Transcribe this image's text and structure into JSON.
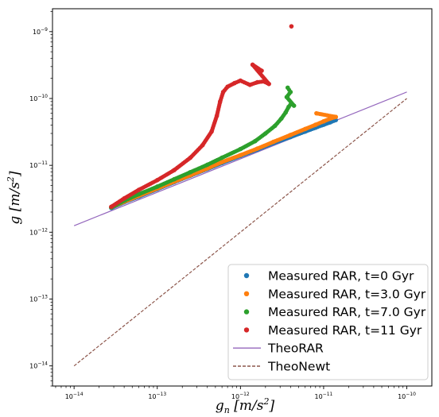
{
  "chart_data": {
    "type": "scatter",
    "xscale": "log",
    "yscale": "log",
    "xlim": [
      5.5e-15,
      2e-10
    ],
    "ylim": [
      5e-15,
      2.2e-09
    ],
    "xlabel": "g_n [m/s^2]",
    "ylabel": "g [m/s^2]",
    "xlabel_parts": {
      "main": "g",
      "sub": "n",
      "unit_open": " [m/s",
      "unit_sup": "2",
      "unit_close": "]"
    },
    "ylabel_parts": {
      "main": "g",
      "unit_open": " [m/s",
      "unit_sup": "2",
      "unit_close": "]"
    },
    "x_ticks": [
      {
        "value": 1e-14,
        "base": "10",
        "exp": "−14"
      },
      {
        "value": 1e-13,
        "base": "10",
        "exp": "−13"
      },
      {
        "value": 1e-12,
        "base": "10",
        "exp": "−12"
      },
      {
        "value": 1e-11,
        "base": "10",
        "exp": "−11"
      },
      {
        "value": 1e-10,
        "base": "10",
        "exp": "−10"
      }
    ],
    "y_ticks": [
      {
        "value": 1e-14,
        "base": "10",
        "exp": "−14"
      },
      {
        "value": 1e-13,
        "base": "10",
        "exp": "−13"
      },
      {
        "value": 1e-12,
        "base": "10",
        "exp": "−12"
      },
      {
        "value": 1e-11,
        "base": "10",
        "exp": "−11"
      },
      {
        "value": 1e-10,
        "base": "10",
        "exp": "−10"
      },
      {
        "value": 1e-09,
        "base": "10",
        "exp": "−9"
      }
    ],
    "legend_position": "lower right",
    "grid": false,
    "series": [
      {
        "name": "Measured RAR, t=0 Gyr",
        "kind": "scatter",
        "color": "#1f77b4",
        "x": [
          2.8e-14,
          4e-14,
          6e-14,
          1e-13,
          1.6e-13,
          2.5e-13,
          4e-13,
          6e-13,
          1e-12,
          1.6e-12,
          2.5e-12,
          4e-12,
          6e-12,
          8e-12,
          1e-11,
          1.2e-11,
          1.4e-11
        ],
        "y": [
          2.3e-12,
          2.8e-12,
          3.4e-12,
          4.4e-12,
          5.6e-12,
          7e-12,
          8.8e-12,
          1.08e-11,
          1.38e-11,
          1.72e-11,
          2.15e-11,
          2.65e-11,
          3.2e-11,
          3.65e-11,
          4.05e-11,
          4.4e-11,
          4.75e-11
        ]
      },
      {
        "name": "Measured RAR, t=3.0 Gyr",
        "kind": "scatter",
        "color": "#ff7f0e",
        "x": [
          2.8e-14,
          4e-14,
          6e-14,
          1e-13,
          1.6e-13,
          2.5e-13,
          4e-13,
          6e-13,
          1e-12,
          1.6e-12,
          2.5e-12,
          4e-12,
          6e-12,
          8e-12,
          1e-11,
          1.2e-11,
          1.4e-11,
          8.2e-12
        ],
        "y": [
          2.35e-12,
          2.85e-12,
          3.5e-12,
          4.5e-12,
          5.7e-12,
          7.1e-12,
          9e-12,
          1.12e-11,
          1.42e-11,
          1.78e-11,
          2.25e-11,
          2.85e-11,
          3.5e-11,
          4.05e-11,
          4.55e-11,
          5e-11,
          5.3e-11,
          6e-11
        ]
      },
      {
        "name": "Measured RAR, t=7.0 Gyr",
        "kind": "scatter",
        "color": "#2ca02c",
        "x": [
          2.8e-14,
          4e-14,
          6e-14,
          1e-13,
          1.6e-13,
          2.5e-13,
          4e-13,
          6e-13,
          1e-12,
          1.5e-12,
          2e-12,
          2.6e-12,
          3.1e-12,
          3.5e-12,
          3.8e-12,
          4.1e-12,
          4.4e-12,
          3.6e-12,
          4e-12,
          3.7e-12
        ],
        "y": [
          2.35e-12,
          2.95e-12,
          3.7e-12,
          4.8e-12,
          6.2e-12,
          7.9e-12,
          1.02e-11,
          1.3e-11,
          1.75e-11,
          2.3e-11,
          3e-11,
          3.9e-11,
          5e-11,
          6.2e-11,
          7.5e-11,
          8.5e-11,
          7.8e-11,
          1.05e-10,
          1.25e-10,
          1.45e-10
        ]
      },
      {
        "name": "Measured RAR, t=11 Gyr",
        "kind": "scatter",
        "color": "#d62728",
        "x": [
          2.8e-14,
          4e-14,
          6e-14,
          1e-13,
          1.6e-13,
          2.5e-13,
          3.5e-13,
          4.5e-13,
          5.2e-13,
          5.7e-13,
          6.2e-13,
          7e-13,
          8.5e-13,
          1e-12,
          1.3e-12,
          1.6e-12,
          1.9e-12,
          2.2e-12,
          1.4e-12,
          1.8e-12,
          4.1e-12
        ],
        "y": [
          2.4e-12,
          3.2e-12,
          4.3e-12,
          6e-12,
          8.5e-12,
          1.3e-11,
          2e-11,
          3.2e-11,
          5.5e-11,
          9e-11,
          1.25e-10,
          1.5e-10,
          1.7e-10,
          1.85e-10,
          1.6e-10,
          1.75e-10,
          1.8e-10,
          1.65e-10,
          3.2e-10,
          2.6e-10,
          1.2e-09
        ]
      },
      {
        "name": "TheoRAR",
        "kind": "line",
        "style": "solid",
        "color": "#9467bd",
        "x": [
          1e-14,
          1e-10
        ],
        "y": [
          1.25e-12,
          1.25e-10
        ]
      },
      {
        "name": "TheoNewt",
        "kind": "line",
        "style": "dashed",
        "color": "#8c564b",
        "x": [
          1e-14,
          1e-10
        ],
        "y": [
          1e-14,
          1e-10
        ]
      }
    ]
  }
}
